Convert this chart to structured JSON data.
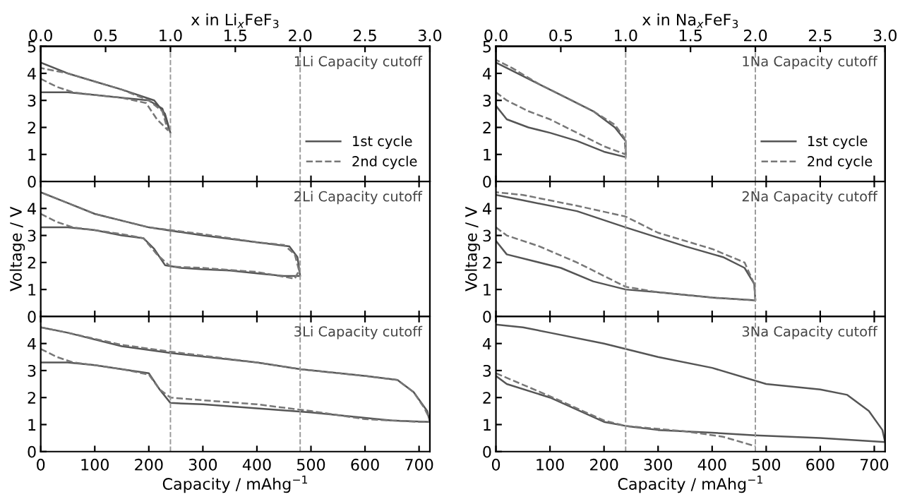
{
  "chart_data": [
    {
      "type": "line",
      "x2label": "x in Li$_{x}$FeF$_{3}$",
      "x2lim": [
        0,
        3
      ],
      "x2ticks": [
        {
          "value": 0,
          "label": "0.0"
        },
        {
          "value": 0.5,
          "label": "0.5"
        },
        {
          "value": 1,
          "label": "1.0"
        },
        {
          "value": 1.5,
          "label": "1.5"
        },
        {
          "value": 2,
          "label": "2.0"
        },
        {
          "value": 2.5,
          "label": "2.5"
        },
        {
          "value": 3,
          "label": "3.0"
        }
      ],
      "xlim": [
        0,
        720
      ],
      "xticks": [
        0,
        100,
        200,
        300,
        400,
        500,
        600,
        700
      ],
      "ylim": [
        0,
        5
      ],
      "yticks": [
        0,
        1,
        2,
        3,
        4,
        5
      ],
      "tick_labels": "y",
      "legend": "lower right",
      "annotations": [
        "1Li Capacity cutoff"
      ],
      "ref_lines": [
        {
          "axis": "x",
          "value": 240,
          "color": "#999999",
          "line_style": "dashed"
        },
        {
          "axis": "x",
          "value": 480,
          "color": "#999999",
          "line_style": "dashed"
        }
      ],
      "series": [
        {
          "name": "1st cycle",
          "color": "#555555",
          "line_style": "solid",
          "x": [
            0,
            50,
            100,
            150,
            200,
            225,
            240,
            240,
            230,
            210,
            150,
            100,
            50,
            0
          ],
          "values": [
            3.3,
            3.3,
            3.2,
            3.1,
            3.0,
            2.7,
            1.8,
            1.8,
            2.5,
            3.0,
            3.4,
            3.7,
            4.0,
            4.4
          ]
        },
        {
          "name": "2nd cycle",
          "color": "#777777",
          "line_style": "dashed",
          "x": [
            0,
            30,
            60,
            100,
            150,
            195,
            215,
            235,
            235,
            225,
            200,
            150,
            100,
            50,
            0
          ],
          "values": [
            3.8,
            3.5,
            3.3,
            3.2,
            3.1,
            2.9,
            2.3,
            1.9,
            1.9,
            2.6,
            3.0,
            3.4,
            3.7,
            4.0,
            4.2
          ]
        }
      ]
    },
    {
      "type": "line",
      "ylabel": "Voltage / V",
      "xlim": [
        0,
        720
      ],
      "xticks": [
        0,
        100,
        200,
        300,
        400,
        500,
        600,
        700
      ],
      "ylim": [
        0,
        5
      ],
      "yticks": [
        0,
        1,
        2,
        3,
        4
      ],
      "tick_labels": "y",
      "annotations": [
        "2Li Capacity cutoff"
      ],
      "ref_lines": [
        {
          "axis": "x",
          "value": 240,
          "color": "#999999",
          "line_style": "dashed"
        },
        {
          "axis": "x",
          "value": 480,
          "color": "#999999",
          "line_style": "dashed"
        }
      ],
      "series": [
        {
          "color": "#555555",
          "line_style": "solid",
          "x": [
            0,
            50,
            100,
            150,
            190,
            210,
            230,
            260,
            300,
            350,
            400,
            450,
            480,
            480,
            475,
            460,
            400,
            300,
            200,
            100,
            50,
            0
          ],
          "values": [
            3.3,
            3.3,
            3.2,
            3.0,
            2.9,
            2.5,
            1.9,
            1.8,
            1.75,
            1.7,
            1.6,
            1.5,
            1.5,
            1.5,
            2.2,
            2.6,
            2.75,
            3.0,
            3.3,
            3.8,
            4.2,
            4.6
          ]
        },
        {
          "color": "#777777",
          "line_style": "dashed",
          "x": [
            0,
            30,
            60,
            100,
            150,
            190,
            215,
            240,
            300,
            400,
            470,
            478,
            470,
            450,
            400,
            300,
            200,
            100,
            50,
            0
          ],
          "values": [
            3.8,
            3.5,
            3.3,
            3.2,
            3.05,
            2.9,
            2.3,
            1.85,
            1.8,
            1.65,
            1.4,
            1.7,
            2.3,
            2.65,
            2.75,
            3.05,
            3.3,
            3.8,
            4.2,
            4.6
          ]
        }
      ]
    },
    {
      "type": "line",
      "xlabel": "Capacity / mAhg$^{−1}$",
      "xlim": [
        0,
        720
      ],
      "xticks": [
        0,
        100,
        200,
        300,
        400,
        500,
        600,
        700
      ],
      "ylim": [
        0,
        5
      ],
      "yticks": [
        0,
        1,
        2,
        3,
        4
      ],
      "annotations": [
        "3Li Capacity cutoff"
      ],
      "ref_lines": [
        {
          "axis": "x",
          "value": 240,
          "color": "#999999",
          "line_style": "dashed"
        },
        {
          "axis": "x",
          "value": 480,
          "color": "#999999",
          "line_style": "dashed"
        }
      ],
      "series": [
        {
          "color": "#555555",
          "line_style": "solid",
          "x": [
            0,
            50,
            100,
            150,
            200,
            220,
            240,
            300,
            400,
            500,
            600,
            650,
            720,
            720,
            715,
            690,
            660,
            600,
            480,
            400,
            240,
            150,
            50,
            0
          ],
          "values": [
            3.3,
            3.3,
            3.2,
            3.05,
            2.9,
            2.3,
            1.8,
            1.75,
            1.6,
            1.45,
            1.25,
            1.15,
            1.1,
            1.1,
            1.5,
            2.2,
            2.65,
            2.8,
            3.05,
            3.3,
            3.65,
            3.9,
            4.4,
            4.6
          ]
        },
        {
          "color": "#777777",
          "line_style": "dashed",
          "x": [
            0,
            30,
            60,
            100,
            150,
            200,
            220,
            240,
            300,
            400,
            500,
            600,
            650,
            700,
            720,
            720,
            710,
            690,
            660,
            600,
            480,
            400,
            240,
            150,
            50,
            0
          ],
          "values": [
            3.8,
            3.5,
            3.3,
            3.2,
            3.05,
            2.85,
            2.3,
            2.0,
            1.9,
            1.75,
            1.5,
            1.2,
            1.15,
            1.1,
            1.1,
            1.2,
            1.6,
            2.2,
            2.65,
            2.8,
            3.05,
            3.3,
            3.7,
            3.95,
            4.4,
            4.6
          ]
        }
      ]
    },
    {
      "type": "line",
      "x2label": "x in Na$_{x}$FeF$_{3}$",
      "x2lim": [
        0,
        3
      ],
      "x2ticks": [
        {
          "value": 0,
          "label": "0.0"
        },
        {
          "value": 0.5,
          "label": "0.5"
        },
        {
          "value": 1,
          "label": "1.0"
        },
        {
          "value": 1.5,
          "label": "1.5"
        },
        {
          "value": 2,
          "label": "2.0"
        },
        {
          "value": 2.5,
          "label": "2.5"
        },
        {
          "value": 3,
          "label": "3.0"
        }
      ],
      "xlim": [
        0,
        720
      ],
      "xticks": [
        0,
        100,
        200,
        300,
        400,
        500,
        600,
        700
      ],
      "ylim": [
        0,
        5
      ],
      "yticks": [
        0,
        1,
        2,
        3,
        4,
        5
      ],
      "tick_labels": "y",
      "legend": "lower right",
      "annotations": [
        "1Na Capacity cutoff"
      ],
      "ref_lines": [
        {
          "axis": "x",
          "value": 240,
          "color": "#999999",
          "line_style": "dashed"
        },
        {
          "axis": "x",
          "value": 480,
          "color": "#999999",
          "line_style": "dashed"
        }
      ],
      "series": [
        {
          "name": "1st cycle",
          "color": "#555555",
          "line_style": "solid",
          "x": [
            0,
            20,
            60,
            100,
            150,
            200,
            240,
            240,
            220,
            180,
            130,
            80,
            30,
            0
          ],
          "values": [
            2.8,
            2.3,
            2.0,
            1.8,
            1.5,
            1.1,
            0.9,
            1.5,
            2.0,
            2.6,
            3.1,
            3.6,
            4.1,
            4.4
          ]
        },
        {
          "name": "2nd cycle",
          "color": "#777777",
          "line_style": "dashed",
          "x": [
            0,
            20,
            60,
            100,
            150,
            200,
            240,
            238,
            220,
            180,
            130,
            80,
            30,
            0
          ],
          "values": [
            3.3,
            3.0,
            2.6,
            2.3,
            1.8,
            1.3,
            1.0,
            1.6,
            2.1,
            2.6,
            3.1,
            3.6,
            4.2,
            4.5
          ]
        }
      ]
    },
    {
      "type": "line",
      "ylabel": "Voltage / V",
      "xlim": [
        0,
        720
      ],
      "xticks": [
        0,
        100,
        200,
        300,
        400,
        500,
        600,
        700
      ],
      "ylim": [
        0,
        5
      ],
      "yticks": [
        0,
        1,
        2,
        3,
        4
      ],
      "tick_labels": "y",
      "annotations": [
        "2Na Capacity cutoff"
      ],
      "ref_lines": [
        {
          "axis": "x",
          "value": 240,
          "color": "#999999",
          "line_style": "dashed"
        },
        {
          "axis": "x",
          "value": 480,
          "color": "#999999",
          "line_style": "dashed"
        }
      ],
      "series": [
        {
          "color": "#555555",
          "line_style": "solid",
          "x": [
            0,
            20,
            60,
            120,
            180,
            240,
            300,
            400,
            480,
            478,
            460,
            420,
            350,
            240,
            150,
            50,
            0
          ],
          "values": [
            2.8,
            2.3,
            2.1,
            1.8,
            1.3,
            1.0,
            0.9,
            0.7,
            0.6,
            1.2,
            1.8,
            2.2,
            2.6,
            3.3,
            3.9,
            4.3,
            4.5
          ]
        },
        {
          "color": "#777777",
          "line_style": "dashed",
          "x": [
            0,
            20,
            80,
            150,
            240,
            300,
            400,
            480,
            478,
            460,
            400,
            300,
            240,
            150,
            50,
            0
          ],
          "values": [
            3.3,
            3.0,
            2.6,
            2.0,
            1.1,
            0.9,
            0.7,
            0.6,
            1.2,
            2.0,
            2.5,
            3.1,
            3.7,
            4.1,
            4.5,
            4.6
          ]
        }
      ]
    },
    {
      "type": "line",
      "xlabel": "Capacity / mAhg$^{−1}$",
      "xlim": [
        0,
        720
      ],
      "xticks": [
        0,
        100,
        200,
        300,
        400,
        500,
        600,
        700
      ],
      "ylim": [
        0,
        5
      ],
      "yticks": [
        0,
        1,
        2,
        3,
        4
      ],
      "annotations": [
        "3Na Capacity cutoff"
      ],
      "ref_lines": [
        {
          "axis": "x",
          "value": 240,
          "color": "#999999",
          "line_style": "dashed"
        },
        {
          "axis": "x",
          "value": 480,
          "color": "#999999",
          "line_style": "dashed"
        }
      ],
      "series": [
        {
          "color": "#555555",
          "line_style": "solid",
          "x": [
            0,
            20,
            100,
            200,
            240,
            300,
            400,
            480,
            600,
            720,
            715,
            690,
            650,
            600,
            500,
            400,
            300,
            200,
            100,
            50,
            0
          ],
          "values": [
            2.8,
            2.5,
            2.0,
            1.1,
            0.95,
            0.8,
            0.7,
            0.6,
            0.5,
            0.35,
            0.8,
            1.5,
            2.1,
            2.3,
            2.5,
            3.1,
            3.5,
            4.0,
            4.4,
            4.6,
            4.7
          ]
        },
        {
          "color": "#777777",
          "line_style": "dashed",
          "x": [
            0,
            100,
            200,
            240,
            350,
            420,
            480
          ],
          "values": [
            2.9,
            2.05,
            1.15,
            0.95,
            0.75,
            0.55,
            0.2
          ]
        }
      ]
    }
  ]
}
